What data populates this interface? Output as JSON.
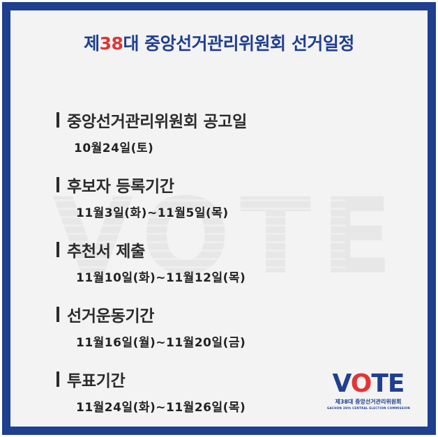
{
  "title": {
    "prefix": "제",
    "number": "38",
    "suffix": "대 중앙선거관리위원회 선거일정"
  },
  "watermark": "VOTE",
  "schedule": [
    {
      "title": "중앙선거관리위원회 공고일",
      "date": "10월24일(토)"
    },
    {
      "title": "후보자 등록기간",
      "date": "11월3일(화)~11월5일(목)"
    },
    {
      "title": "추천서 제출",
      "date": "11월10일(화)~11월12일(목)"
    },
    {
      "title": "선거운동기간",
      "date": "11월16일(월)~11월20일(금)"
    },
    {
      "title": "투표기간",
      "date": "11월24일(화)~11월26일(목)"
    }
  ],
  "logo": {
    "v": "V",
    "o": "O",
    "te": "TE",
    "subtitle": "제38대 중앙선거관리위원회",
    "english": "GACHON 38th CENTRAL ELECTION COMMISSION"
  },
  "colors": {
    "brand_blue": "#1f3f8f",
    "accent_red": "#e33434"
  }
}
